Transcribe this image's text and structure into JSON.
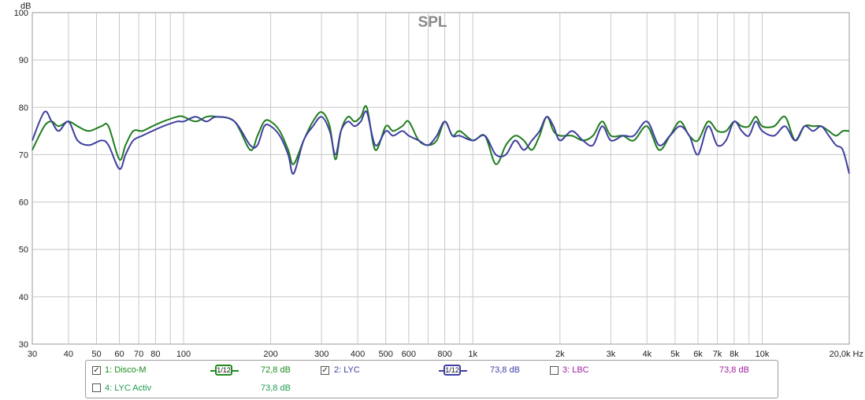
{
  "chart_data": {
    "type": "line",
    "title": "SPL",
    "ylabel": "dB",
    "xlabel": "Hz",
    "x_scale": "log",
    "xlim": [
      30,
      20000
    ],
    "ylim": [
      30,
      100
    ],
    "grid": true,
    "legend_placement": "bottom",
    "y_ticks": [
      "30",
      "40",
      "50",
      "60",
      "70",
      "80",
      "90",
      "100"
    ],
    "x_ticks": [
      {
        "v": 30,
        "label": "30"
      },
      {
        "v": 40,
        "label": "40"
      },
      {
        "v": 50,
        "label": "50"
      },
      {
        "v": 60,
        "label": "60"
      },
      {
        "v": 70,
        "label": "70"
      },
      {
        "v": 80,
        "label": "80"
      },
      {
        "v": 100,
        "label": "100"
      },
      {
        "v": 200,
        "label": "200"
      },
      {
        "v": 300,
        "label": "300"
      },
      {
        "v": 400,
        "label": "400"
      },
      {
        "v": 500,
        "label": "500"
      },
      {
        "v": 600,
        "label": "600"
      },
      {
        "v": 800,
        "label": "800"
      },
      {
        "v": 1000,
        "label": "1k"
      },
      {
        "v": 2000,
        "label": "2k"
      },
      {
        "v": 3000,
        "label": "3k"
      },
      {
        "v": 4000,
        "label": "4k"
      },
      {
        "v": 5000,
        "label": "5k"
      },
      {
        "v": 6000,
        "label": "6k"
      },
      {
        "v": 7000,
        "label": "7k"
      },
      {
        "v": 8000,
        "label": "8k"
      },
      {
        "v": 10000,
        "label": "10k"
      },
      {
        "v": 20000,
        "label": "20,0k Hz"
      }
    ],
    "series": [
      {
        "name": "Disco-M",
        "color": "#1e7d1e",
        "x": [
          30,
          33,
          35,
          37,
          40,
          43,
          47,
          52,
          55,
          60,
          63,
          67,
          72,
          78,
          85,
          95,
          100,
          110,
          120,
          130,
          150,
          170,
          180,
          190,
          200,
          215,
          230,
          240,
          260,
          280,
          300,
          320,
          335,
          350,
          370,
          390,
          410,
          430,
          460,
          500,
          530,
          570,
          600,
          650,
          700,
          750,
          800,
          850,
          900,
          1000,
          1100,
          1200,
          1300,
          1400,
          1500,
          1600,
          1700,
          1800,
          1900,
          2000,
          2200,
          2400,
          2600,
          2800,
          3000,
          3300,
          3600,
          4000,
          4400,
          4800,
          5200,
          5600,
          6000,
          6500,
          7000,
          7500,
          8000,
          8500,
          9000,
          9500,
          10000,
          11000,
          12000,
          13000,
          14000,
          15000,
          16000,
          17000,
          18000,
          19000,
          20000
        ],
        "values": [
          71,
          76,
          77,
          76,
          77,
          76,
          75,
          76,
          76,
          69,
          72,
          75,
          75,
          76,
          77,
          78,
          78,
          77,
          78,
          78,
          77,
          71,
          74,
          77,
          77,
          75,
          71,
          68,
          73,
          77,
          79,
          76,
          69,
          75,
          78,
          77,
          78,
          80,
          71,
          76,
          75,
          76,
          77,
          73,
          72,
          73,
          77,
          74,
          75,
          73,
          74,
          68,
          72,
          74,
          73,
          71,
          74,
          78,
          75,
          74,
          74,
          73,
          74,
          77,
          74,
          74,
          73,
          76,
          71,
          74,
          77,
          74,
          73,
          77,
          75,
          75,
          77,
          76,
          76,
          78,
          76,
          76,
          78,
          73,
          76,
          76,
          76,
          75,
          74,
          75,
          75
        ]
      },
      {
        "name": "LYC",
        "color": "#3f3fa0",
        "x": [
          30,
          33,
          35,
          37,
          40,
          43,
          47,
          52,
          55,
          60,
          63,
          67,
          72,
          78,
          85,
          95,
          100,
          110,
          120,
          130,
          150,
          170,
          180,
          190,
          200,
          215,
          230,
          240,
          260,
          280,
          300,
          320,
          335,
          350,
          370,
          390,
          410,
          430,
          460,
          500,
          530,
          570,
          600,
          650,
          700,
          750,
          800,
          850,
          900,
          1000,
          1100,
          1200,
          1300,
          1400,
          1500,
          1600,
          1700,
          1800,
          1900,
          2000,
          2200,
          2400,
          2600,
          2800,
          3000,
          3300,
          3600,
          4000,
          4400,
          4800,
          5200,
          5600,
          6000,
          6500,
          7000,
          7500,
          8000,
          8500,
          9000,
          9500,
          10000,
          11000,
          12000,
          13000,
          14000,
          15000,
          16000,
          17000,
          18000,
          19000,
          20000
        ],
        "values": [
          73,
          79,
          77,
          75,
          77,
          73,
          72,
          73,
          72,
          67,
          70,
          73,
          74,
          75,
          76,
          77,
          77,
          78,
          77,
          78,
          77,
          72,
          72,
          76,
          76,
          74,
          70,
          66,
          73,
          76,
          78,
          75,
          70,
          75,
          77,
          76,
          77,
          79,
          72,
          75,
          74,
          75,
          74,
          73,
          72,
          74,
          77,
          74,
          74,
          73,
          74,
          70,
          70,
          73,
          71,
          73,
          75,
          78,
          76,
          73,
          75,
          73,
          72,
          76,
          73,
          74,
          74,
          77,
          72,
          74,
          76,
          74,
          70,
          76,
          72,
          73,
          77,
          75,
          74,
          77,
          75,
          74,
          76,
          73,
          76,
          75,
          76,
          74,
          72,
          71,
          66
        ]
      }
    ]
  },
  "legend": [
    {
      "checked": true,
      "checkmark": "✓",
      "label": "1: Disco-M",
      "smoothing": "1/12",
      "level": "72,8 dB",
      "color": "#1e8c1e"
    },
    {
      "checked": true,
      "checkmark": "✓",
      "label": "2: LYC",
      "smoothing": "1/12",
      "level": "73,8 dB",
      "color": "#4040a8"
    },
    {
      "checked": false,
      "label": "3: LBC",
      "smoothing": "",
      "level": "73,8 dB",
      "color": "#a020a0"
    },
    {
      "checked": false,
      "label": "4: LYC Activ",
      "smoothing": "",
      "level": "73,8 dB",
      "color": "#1e9c4e"
    }
  ]
}
